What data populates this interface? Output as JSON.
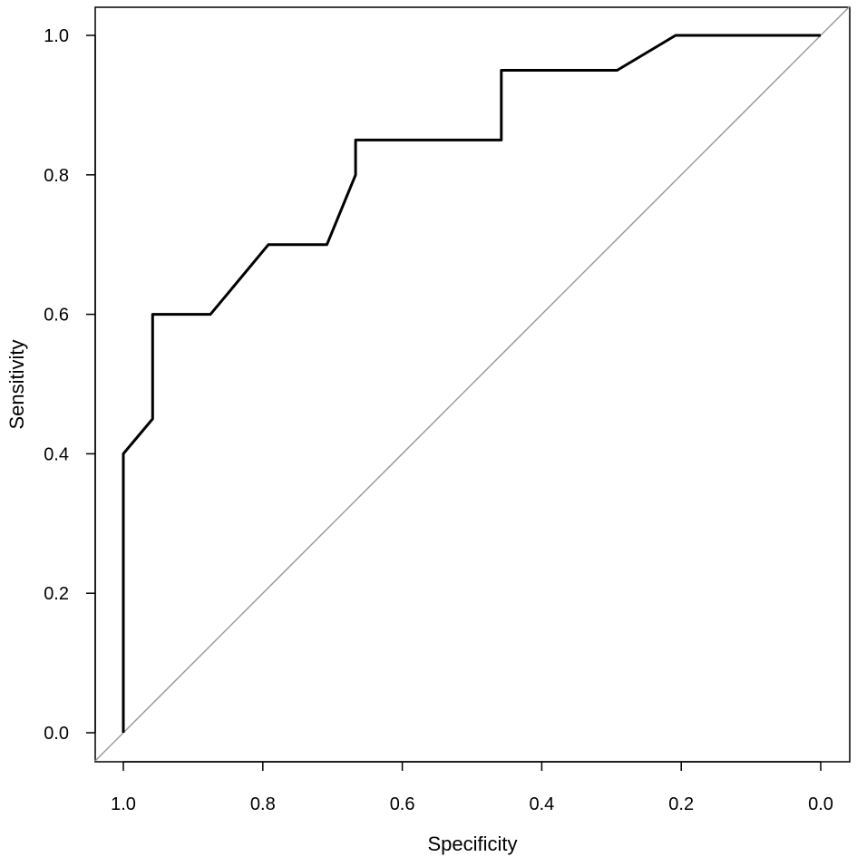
{
  "chart_data": {
    "type": "line",
    "title": "",
    "xlabel": "Specificity",
    "ylabel": "Sensitivity",
    "x_reversed": true,
    "xlim": [
      1.0,
      0.0
    ],
    "ylim": [
      0.0,
      1.0
    ],
    "x_ticks": [
      "1.0",
      "0.8",
      "0.6",
      "0.4",
      "0.2",
      "0.0"
    ],
    "y_ticks": [
      "0.0",
      "0.2",
      "0.4",
      "0.6",
      "0.8",
      "1.0"
    ],
    "grid": false,
    "legend": "none",
    "series": [
      {
        "color": "#000000",
        "points": [
          {
            "x": 1.0,
            "y": 0.0
          },
          {
            "x": 1.0,
            "y": 0.4
          },
          {
            "x": 0.958,
            "y": 0.45
          },
          {
            "x": 0.958,
            "y": 0.6
          },
          {
            "x": 0.875,
            "y": 0.6
          },
          {
            "x": 0.792,
            "y": 0.7
          },
          {
            "x": 0.708,
            "y": 0.7
          },
          {
            "x": 0.667,
            "y": 0.8
          },
          {
            "x": 0.667,
            "y": 0.85
          },
          {
            "x": 0.458,
            "y": 0.85
          },
          {
            "x": 0.458,
            "y": 0.95
          },
          {
            "x": 0.292,
            "y": 0.95
          },
          {
            "x": 0.208,
            "y": 1.0
          },
          {
            "x": 0.0,
            "y": 1.0
          }
        ]
      }
    ],
    "reference_line": {
      "color": "#999999",
      "from": {
        "x": 1.0,
        "y": 0.0
      },
      "to": {
        "x": 0.0,
        "y": 1.0
      }
    }
  }
}
